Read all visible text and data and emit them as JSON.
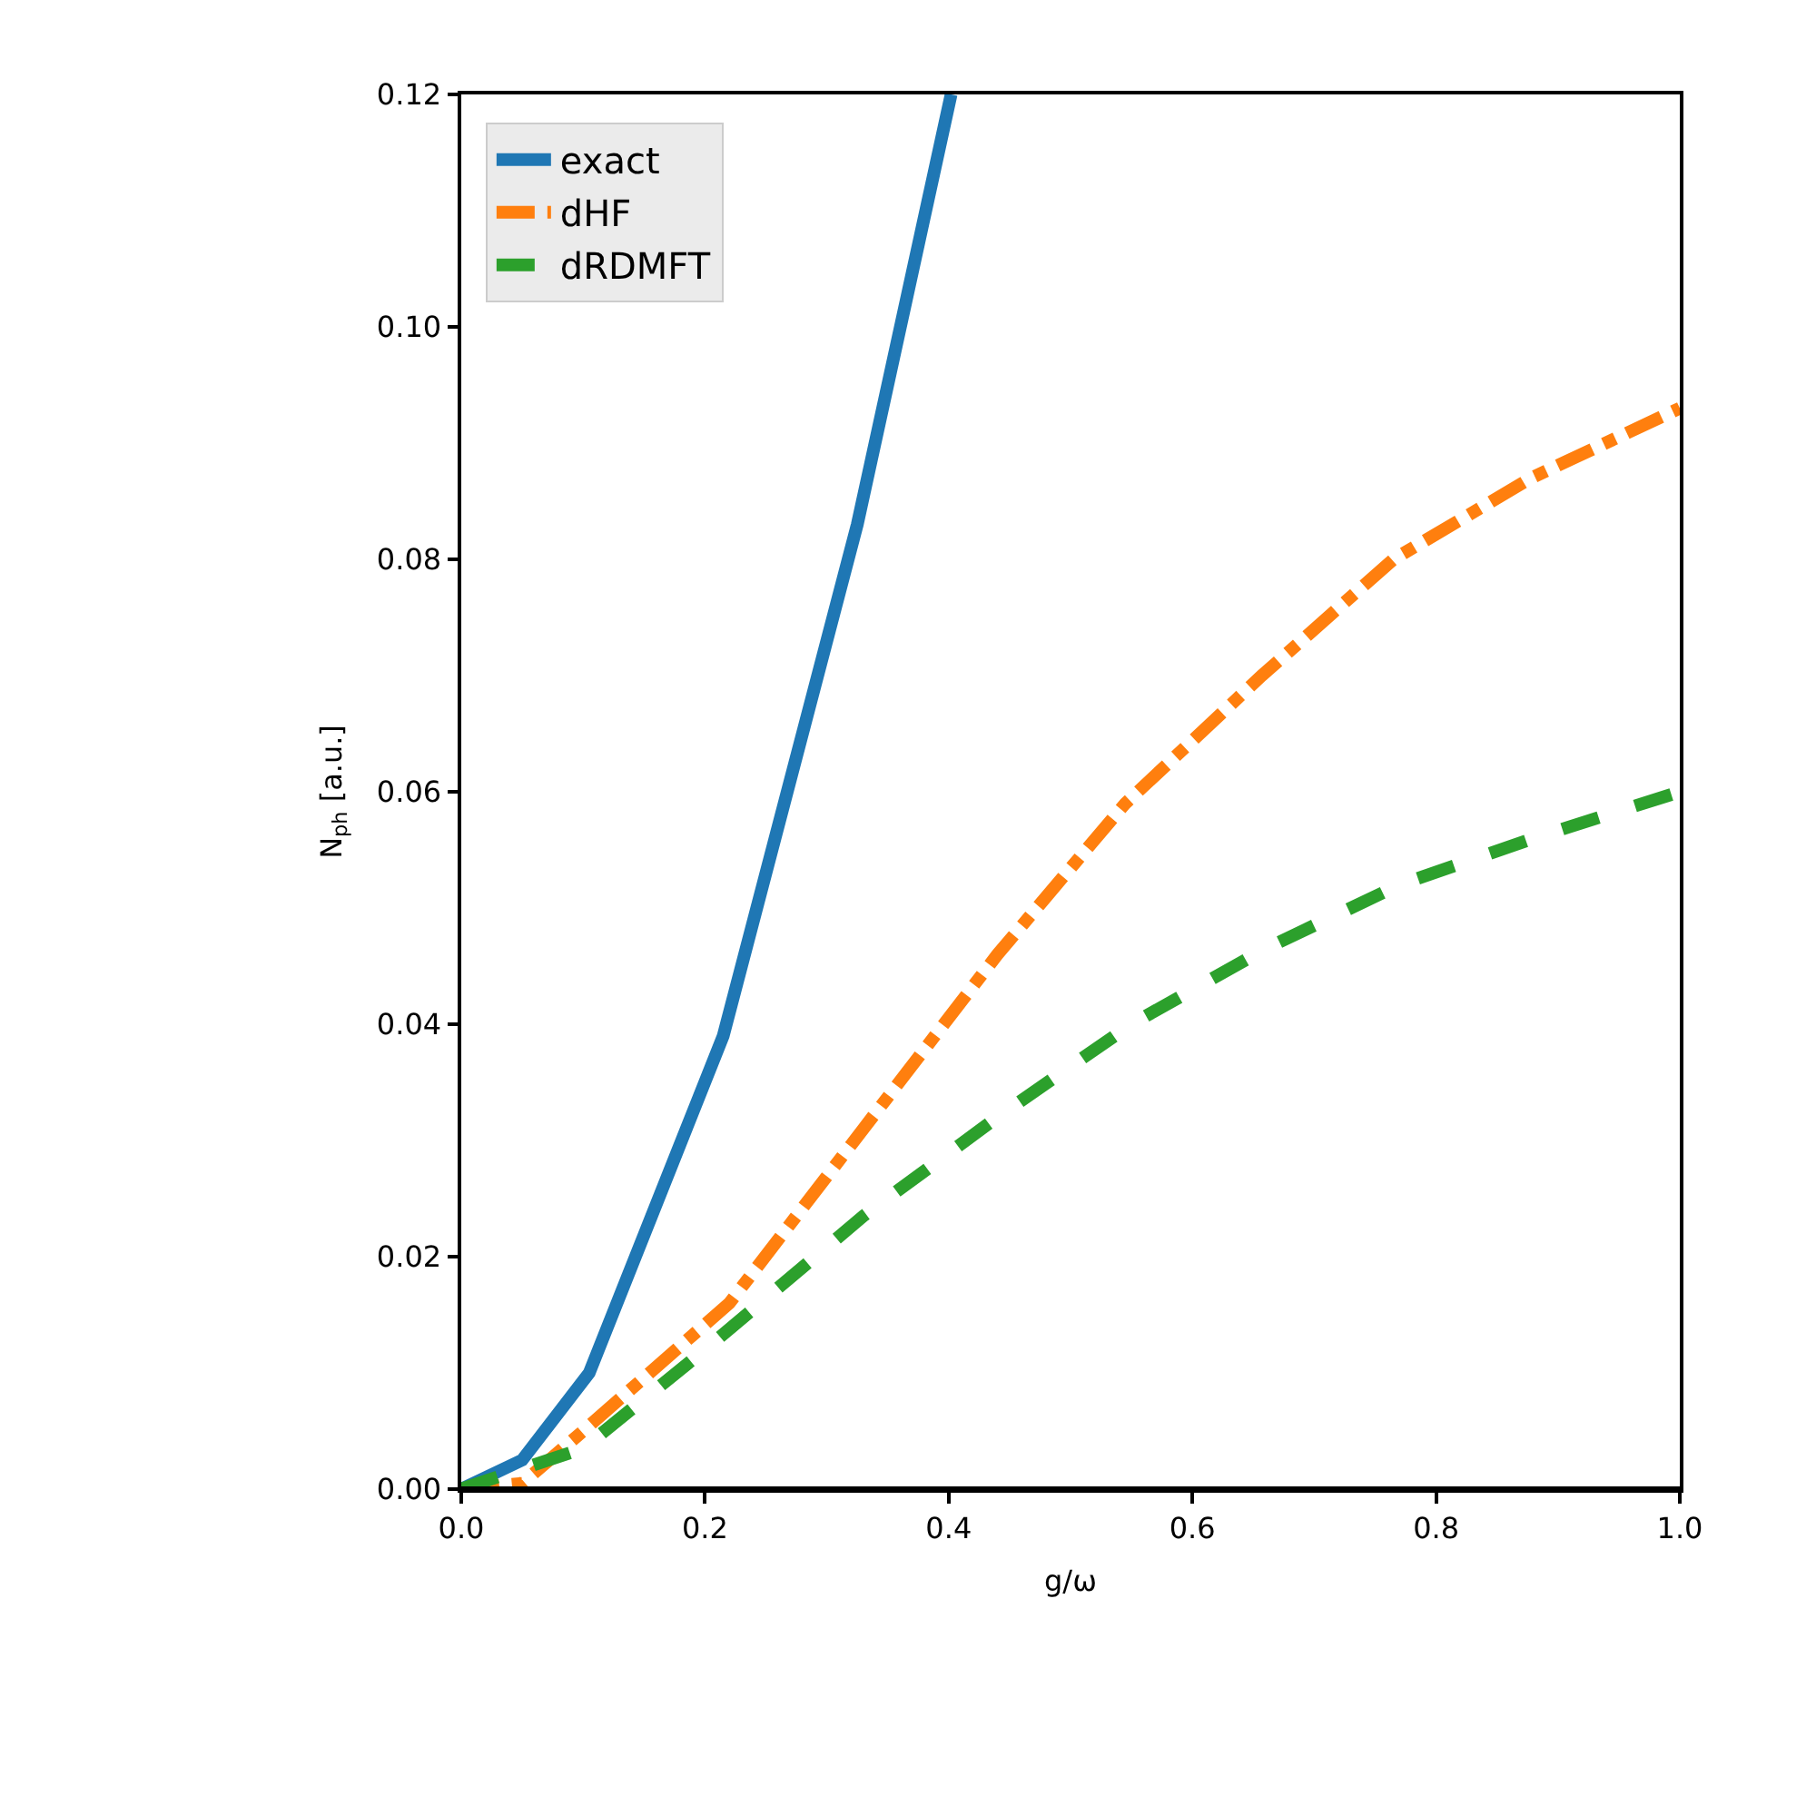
{
  "chart_data": {
    "type": "line",
    "xlabel": "g/ω",
    "ylabel": "N$_{ph}$ [a.u.]",
    "xlim": [
      0,
      1.0
    ],
    "ylim": [
      0,
      0.12
    ],
    "xticks": [
      {
        "value": 0,
        "label": "0.0"
      },
      0.2,
      0.4,
      0.6,
      0.8,
      {
        "value": 1.0,
        "label": "1.0"
      }
    ],
    "yticks": [
      {
        "value": 0,
        "label": "0.00"
      },
      {
        "value": 0.02,
        "label": "0.02"
      },
      {
        "value": 0.04,
        "label": "0.04"
      },
      {
        "value": 0.06,
        "label": "0.06"
      },
      {
        "value": 0.08,
        "label": "0.08"
      },
      {
        "value": 0.1,
        "label": "0.10"
      },
      {
        "value": 0.12,
        "label": "0.12"
      }
    ],
    "grid": false,
    "legend": "top left",
    "marker": "none",
    "ref_lines": [
      {
        "axis": "y",
        "value": 0,
        "color": "#000000"
      }
    ],
    "series": [
      {
        "name": "exact",
        "color": "#1f77b4",
        "line_style": "solid",
        "x": [
          0,
          0.05,
          0.105,
          0.215,
          0.325,
          0.402
        ],
        "values": [
          0,
          0.0025,
          0.01,
          0.039,
          0.083,
          0.12
        ]
      },
      {
        "name": "dHF",
        "color": "#ff7f0e",
        "line_style": "dashdot",
        "x": [
          0,
          0.05,
          0.1,
          0.22,
          0.33,
          0.44,
          0.545,
          0.657,
          0.765,
          0.878,
          1.0
        ],
        "values": [
          0,
          0.0005,
          0.005,
          0.016,
          0.031,
          0.046,
          0.059,
          0.07,
          0.08,
          0.087,
          0.093
        ]
      },
      {
        "name": "dRDMFT",
        "color": "#2ca02c",
        "line_style": "dashed",
        "x": [
          0,
          0.1,
          0.2,
          0.33,
          0.44,
          0.55,
          0.66,
          0.77,
          0.88,
          1.0
        ],
        "values": [
          0,
          0.0035,
          0.012,
          0.0235,
          0.032,
          0.04,
          0.0465,
          0.052,
          0.056,
          0.06
        ]
      }
    ]
  }
}
